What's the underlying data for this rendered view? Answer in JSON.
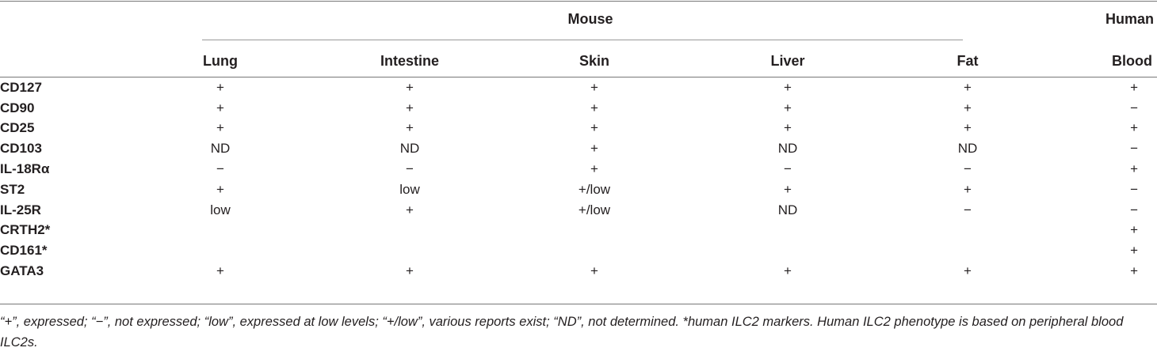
{
  "groups": {
    "mouse": "Mouse",
    "human": "Human"
  },
  "columns": [
    "Lung",
    "Intestine",
    "Skin",
    "Liver",
    "Fat",
    "Blood"
  ],
  "rows": [
    {
      "marker": "CD127",
      "cells": [
        "+",
        "+",
        "+",
        "+",
        "+",
        "+"
      ]
    },
    {
      "marker": "CD90",
      "cells": [
        "+",
        "+",
        "+",
        "+",
        "+",
        "−"
      ]
    },
    {
      "marker": "CD25",
      "cells": [
        "+",
        "+",
        "+",
        "+",
        "+",
        "+"
      ]
    },
    {
      "marker": "CD103",
      "cells": [
        "ND",
        "ND",
        "+",
        "ND",
        "ND",
        "−"
      ]
    },
    {
      "marker": "IL-18Rα",
      "cells": [
        "−",
        "−",
        "+",
        "−",
        "−",
        "+"
      ]
    },
    {
      "marker": "ST2",
      "cells": [
        "+",
        "low",
        "+/low",
        "+",
        "+",
        "−"
      ]
    },
    {
      "marker": "IL-25R",
      "cells": [
        "low",
        "+",
        "+/low",
        "ND",
        "−",
        "−"
      ]
    },
    {
      "marker": "CRTH2*",
      "cells": [
        "",
        "",
        "",
        "",
        "",
        "+"
      ]
    },
    {
      "marker": "CD161*",
      "cells": [
        "",
        "",
        "",
        "",
        "",
        "+"
      ]
    },
    {
      "marker": "GATA3",
      "cells": [
        "+",
        "+",
        "+",
        "+",
        "+",
        "+"
      ]
    }
  ],
  "footnote": "“+”, expressed; “−”, not expressed; “low”, expressed at low levels; “+/low”, various reports exist; “ND”, not determined. *human ILC2 markers. Human ILC2 phenotype is based on peripheral blood ILC2s."
}
